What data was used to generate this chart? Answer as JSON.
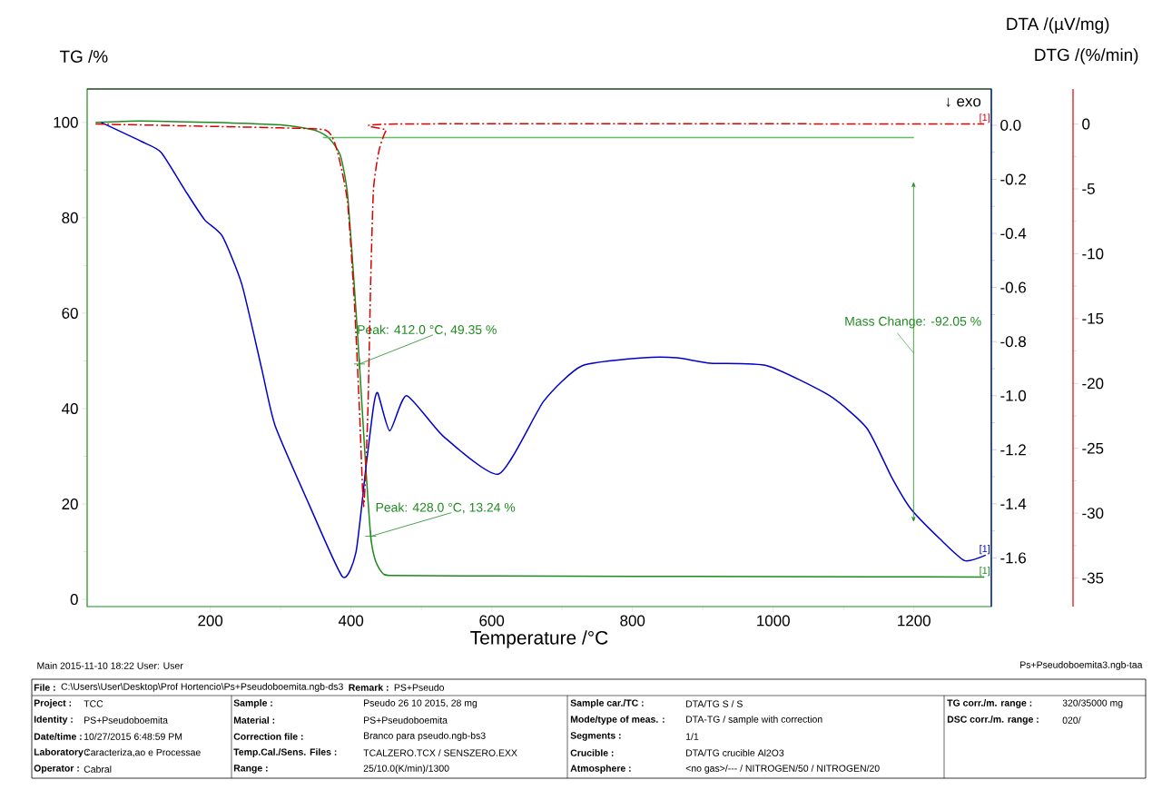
{
  "chart_data": {
    "type": "line",
    "xlabel": "Temperature /°C",
    "ylabel": "TG /%",
    "y2label": "DTA /(µV/mg)",
    "y3label": "DTG /(%/min)",
    "xlim": [
      25,
      1310
    ],
    "ylim": [
      -1.5,
      107
    ],
    "y2lim": [
      -1.78,
      0.134
    ],
    "y3lim": [
      -37.2,
      2.7
    ],
    "xticks": [
      200,
      400,
      600,
      800,
      1000,
      1200
    ],
    "yticks": [
      0,
      20,
      40,
      60,
      80,
      100
    ],
    "y2ticks": [
      {
        "value": 0,
        "label": "0.0"
      },
      -0.2,
      -0.4,
      -0.6,
      -0.8,
      {
        "value": -1,
        "label": "-1.0"
      },
      -1.2,
      -1.4,
      -1.6
    ],
    "y3ticks": [
      0,
      -5,
      -10,
      -15,
      -20,
      -25,
      -30,
      -35
    ],
    "series": [
      {
        "axis": "y",
        "color": "#1f8a1f",
        "line_style": "solid",
        "x": [
          37,
          100,
          200,
          300,
          350,
          370,
          385,
          395,
          405,
          412,
          420,
          428,
          435,
          445,
          460,
          600,
          1000,
          1300
        ],
        "values": [
          100,
          100.3,
          100,
          99.5,
          98.3,
          96.5,
          93,
          85,
          65,
          49.35,
          30,
          13.24,
          8,
          5.5,
          5,
          4.9,
          4.8,
          4.7
        ]
      },
      {
        "axis": "y",
        "color": "#66bb66",
        "line_style": "solid",
        "x": [
          360,
          1200
        ],
        "values": [
          96.8,
          96.8
        ]
      },
      {
        "axis": "y2",
        "color": "#0000cc",
        "line_style": "solid",
        "x": [
          45,
          102,
          130,
          164,
          192,
          217,
          245,
          273,
          292,
          340,
          388,
          407,
          421,
          432,
          438,
          455,
          479,
          531,
          610,
          674,
          728,
          816,
          863,
          911,
          992,
          1080,
          1133,
          1168,
          1196,
          1237,
          1272,
          1302
        ],
        "values": [
          0.01,
          -0.06,
          -0.1,
          -0.24,
          -0.35,
          -0.41,
          -0.59,
          -0.9,
          -1.11,
          -1.4,
          -1.67,
          -1.58,
          -1.27,
          -1.04,
          -0.99,
          -1.13,
          -1.0,
          -1.15,
          -1.29,
          -1.02,
          -0.89,
          -0.86,
          -0.86,
          -0.88,
          -0.89,
          -1.0,
          -1.12,
          -1.3,
          -1.42,
          -1.53,
          -1.61,
          -1.59
        ]
      },
      {
        "axis": "y3",
        "color": "#dd0000",
        "line_style": "dashdot",
        "x": [
          37,
          300,
          365,
          380,
          395,
          405,
          412,
          418,
          424,
          428,
          432,
          440,
          450,
          465,
          1300
        ],
        "values": [
          0,
          -0.3,
          -0.5,
          -2,
          -6,
          -14,
          -22,
          -29.5,
          -22,
          -12,
          -5,
          -2,
          -0.5,
          0,
          0
        ]
      }
    ],
    "annotations": [
      {
        "text": "Peak: 412.0 °C, 49.35 %",
        "x": 412,
        "y": 49.35
      },
      {
        "text": "Peak: 428.0 °C, 13.24 %",
        "x": 428,
        "y": 13.24
      },
      "Mass Change: -92.05 %",
      "↓ exo",
      "[1]",
      "[1]",
      "[1]",
      "Main  2015-11-10 18:22  User: User",
      "Ps+Pseudoboemita3.ngb-taa",
      "File :",
      "C:\\Users\\User\\Desktop\\Prof Hortencio\\Ps+Pseudoboemita.ngb-ds3",
      "Remark :",
      "PS+Pseudo",
      "Project :",
      "TCC",
      "Identity :",
      "PS+Pseudoboemita",
      "Date/time :",
      "10/27/2015 6:48:59 PM",
      "Laboratory :",
      "Caracteriza,ao e Processae",
      "Operator :",
      "Cabral",
      "Sample :",
      "Pseudo 26 10 2015, 28 mg",
      "Material :",
      "PS+Pseudoboemita",
      "Correction file :",
      "Branco para pseudo.ngb-bs3",
      "Temp.Cal./Sens. Files :",
      "TCALZERO.TCX / SENSZERO.EXX",
      "Range :",
      "25/10.0(K/min)/1300",
      "Sample car./TC :",
      "DTA/TG S / S",
      "Mode/type of meas. :",
      "DTA-TG / sample with correction",
      "Segments :",
      "1/1",
      "Crucible :",
      "DTA/TG crucible Al2O3",
      "Atmosphere :",
      "<no gas>/--- / NITROGEN/50 / NITROGEN/20",
      "TG corr./m. range :",
      "320/35000 mg",
      "DSC corr./m. range :",
      "020/"
    ]
  }
}
